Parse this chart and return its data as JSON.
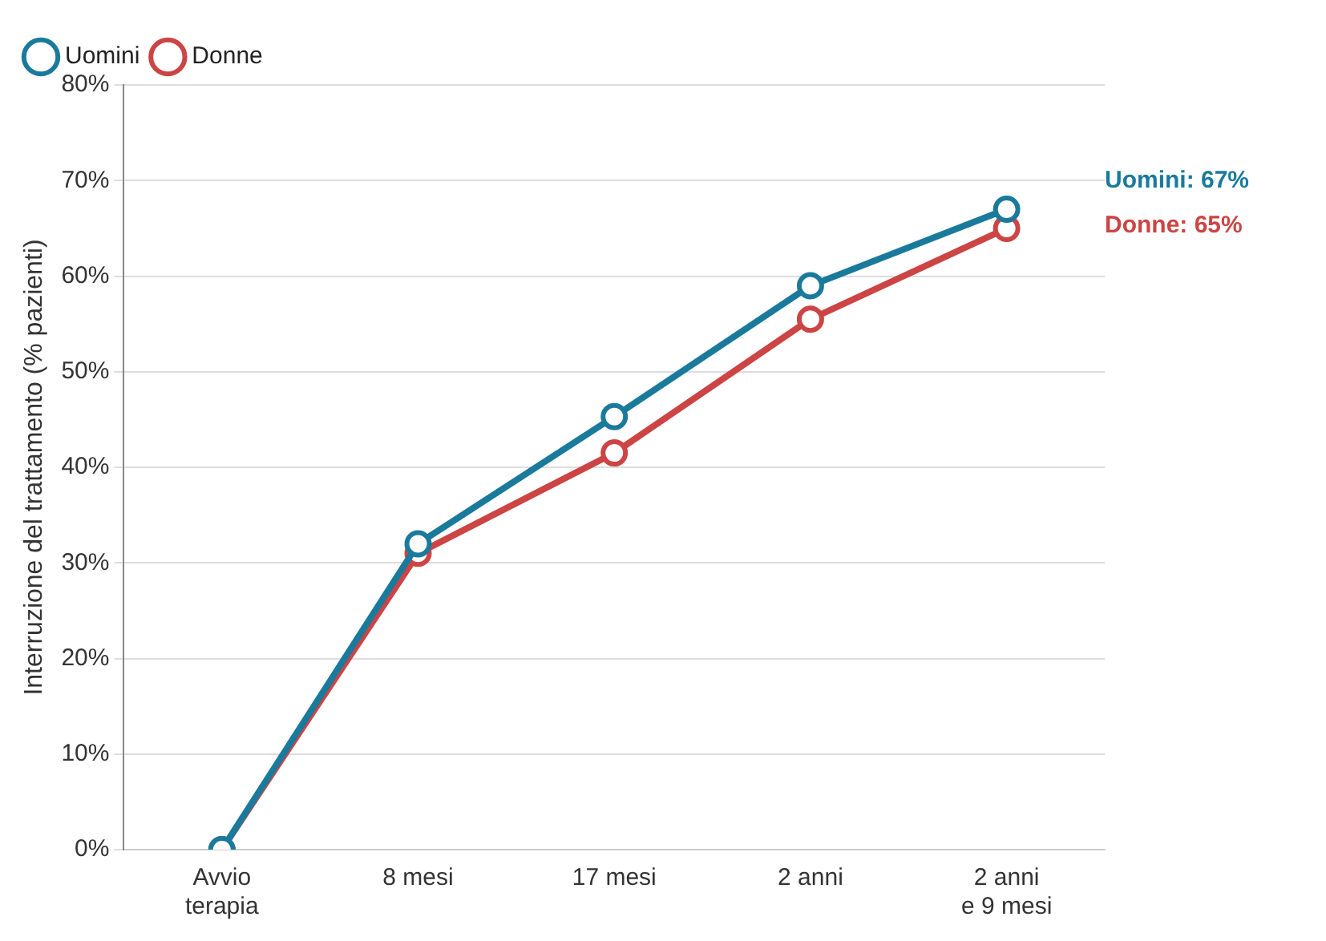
{
  "chart_data": {
    "type": "line",
    "ylabel": "Interruzione del trattamento (% pazienti)",
    "categories": [
      "Avvio\nterapia",
      "8 mesi",
      "17 mesi",
      "2 anni",
      "2 anni\ne 9 mesi"
    ],
    "series": [
      {
        "name": "Donne",
        "color": "#cc4444",
        "values": [
          0,
          31,
          41.5,
          55.5,
          65
        ]
      },
      {
        "name": "Uomini",
        "color": "#1a7a9c",
        "values": [
          0,
          32,
          45.3,
          59,
          67
        ]
      }
    ],
    "ylim": [
      0,
      80
    ],
    "yticks": [
      {
        "value": 0,
        "label": "0%"
      },
      {
        "value": 10,
        "label": "10%"
      },
      {
        "value": 20,
        "label": "20%"
      },
      {
        "value": 30,
        "label": "30%"
      },
      {
        "value": 40,
        "label": "40%"
      },
      {
        "value": 50,
        "label": "50%"
      },
      {
        "value": 60,
        "label": "60%"
      },
      {
        "value": 70,
        "label": "70%"
      },
      {
        "value": 80,
        "label": "80%"
      }
    ],
    "grid": "y",
    "legend": "top left",
    "marker": "circle",
    "line_style": "solid",
    "annotations": [
      "Uomini: 67%",
      "Donne: 65%"
    ]
  }
}
